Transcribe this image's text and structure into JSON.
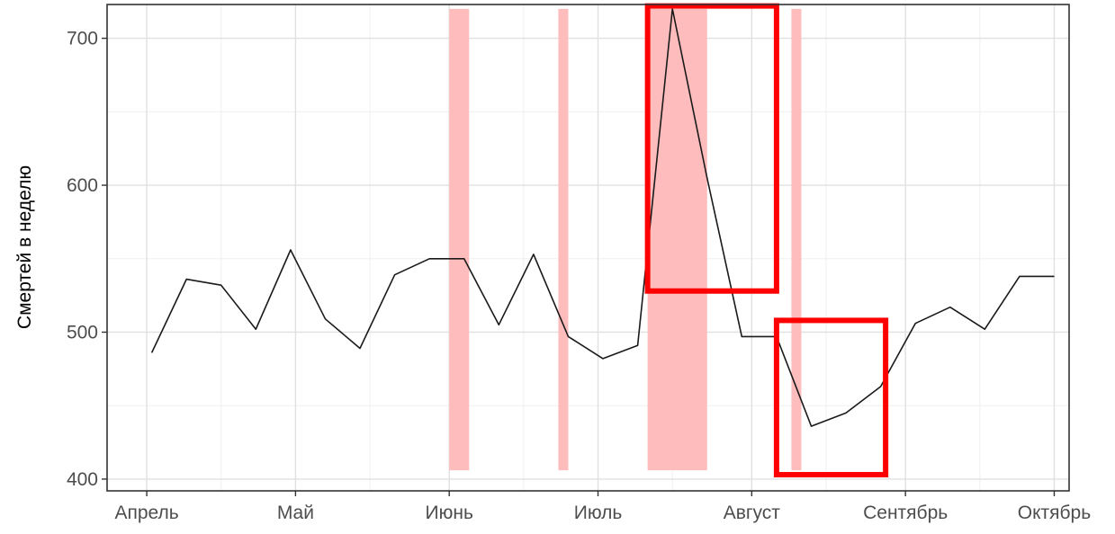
{
  "chart_data": {
    "type": "line",
    "title": "",
    "xlabel": "",
    "ylabel": "Смертей в неделю",
    "x_ticks": [
      "Апрель",
      "Май",
      "Июнь",
      "Июль",
      "Август",
      "Сентябрь",
      "Октябрь"
    ],
    "y_ticks": [
      400,
      500,
      600,
      700
    ],
    "ylim": [
      392,
      723
    ],
    "xlim": [
      "2010-03-24",
      "2010-10-04"
    ],
    "grid": true,
    "series": [
      {
        "color": "#1a1a1a",
        "x": [
          "2010-04-02",
          "2010-04-09",
          "2010-04-16",
          "2010-04-23",
          "2010-04-30",
          "2010-05-07",
          "2010-05-14",
          "2010-05-21",
          "2010-05-28",
          "2010-06-04",
          "2010-06-11",
          "2010-06-18",
          "2010-06-25",
          "2010-07-02",
          "2010-07-09",
          "2010-07-16",
          "2010-07-23",
          "2010-07-30",
          "2010-08-06",
          "2010-08-13",
          "2010-08-20",
          "2010-08-27",
          "2010-09-03",
          "2010-09-10",
          "2010-09-17",
          "2010-09-24",
          "2010-10-01"
        ],
        "y": [
          486,
          536,
          532,
          502,
          556,
          509,
          489,
          539,
          550,
          550,
          505,
          553,
          497,
          482,
          491,
          720,
          605,
          497,
          497,
          436,
          445,
          463,
          506,
          517,
          502,
          538,
          538
        ]
      }
    ],
    "shaded_ranges": {
      "color": "#ffbcbc",
      "y_range": [
        406,
        720
      ],
      "x_ranges": [
        [
          "2010-06-01",
          "2010-06-05"
        ],
        [
          "2010-06-23",
          "2010-06-25"
        ],
        [
          "2010-07-11",
          "2010-07-23"
        ],
        [
          "2010-08-09",
          "2010-08-11"
        ]
      ]
    },
    "highlight_boxes": {
      "color": "#ff0000",
      "boxes": [
        {
          "x_range": [
            "2010-07-11",
            "2010-08-06"
          ],
          "y_range": [
            528,
            722
          ]
        },
        {
          "x_range": [
            "2010-08-06",
            "2010-08-28"
          ],
          "y_range": [
            403,
            508
          ]
        }
      ]
    }
  }
}
